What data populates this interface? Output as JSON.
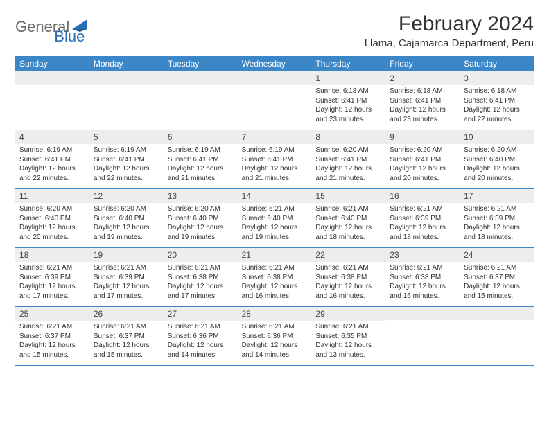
{
  "brand": {
    "general": "General",
    "blue": "Blue"
  },
  "title": "February 2024",
  "location": "Llama, Cajamarca Department, Peru",
  "colors": {
    "header_bg": "#3b86c7",
    "header_text": "#ffffff",
    "daynum_bg": "#eceded",
    "border": "#3b86c7",
    "text": "#333333",
    "logo_gray": "#6b6b6b",
    "logo_blue": "#2a6fb5"
  },
  "weekdays": [
    "Sunday",
    "Monday",
    "Tuesday",
    "Wednesday",
    "Thursday",
    "Friday",
    "Saturday"
  ],
  "weeks": [
    [
      null,
      null,
      null,
      null,
      {
        "n": "1",
        "sr": "6:18 AM",
        "ss": "6:41 PM",
        "dl": "12 hours and 23 minutes."
      },
      {
        "n": "2",
        "sr": "6:18 AM",
        "ss": "6:41 PM",
        "dl": "12 hours and 23 minutes."
      },
      {
        "n": "3",
        "sr": "6:18 AM",
        "ss": "6:41 PM",
        "dl": "12 hours and 22 minutes."
      }
    ],
    [
      {
        "n": "4",
        "sr": "6:19 AM",
        "ss": "6:41 PM",
        "dl": "12 hours and 22 minutes."
      },
      {
        "n": "5",
        "sr": "6:19 AM",
        "ss": "6:41 PM",
        "dl": "12 hours and 22 minutes."
      },
      {
        "n": "6",
        "sr": "6:19 AM",
        "ss": "6:41 PM",
        "dl": "12 hours and 21 minutes."
      },
      {
        "n": "7",
        "sr": "6:19 AM",
        "ss": "6:41 PM",
        "dl": "12 hours and 21 minutes."
      },
      {
        "n": "8",
        "sr": "6:20 AM",
        "ss": "6:41 PM",
        "dl": "12 hours and 21 minutes."
      },
      {
        "n": "9",
        "sr": "6:20 AM",
        "ss": "6:41 PM",
        "dl": "12 hours and 20 minutes."
      },
      {
        "n": "10",
        "sr": "6:20 AM",
        "ss": "6:40 PM",
        "dl": "12 hours and 20 minutes."
      }
    ],
    [
      {
        "n": "11",
        "sr": "6:20 AM",
        "ss": "6:40 PM",
        "dl": "12 hours and 20 minutes."
      },
      {
        "n": "12",
        "sr": "6:20 AM",
        "ss": "6:40 PM",
        "dl": "12 hours and 19 minutes."
      },
      {
        "n": "13",
        "sr": "6:20 AM",
        "ss": "6:40 PM",
        "dl": "12 hours and 19 minutes."
      },
      {
        "n": "14",
        "sr": "6:21 AM",
        "ss": "6:40 PM",
        "dl": "12 hours and 19 minutes."
      },
      {
        "n": "15",
        "sr": "6:21 AM",
        "ss": "6:40 PM",
        "dl": "12 hours and 18 minutes."
      },
      {
        "n": "16",
        "sr": "6:21 AM",
        "ss": "6:39 PM",
        "dl": "12 hours and 18 minutes."
      },
      {
        "n": "17",
        "sr": "6:21 AM",
        "ss": "6:39 PM",
        "dl": "12 hours and 18 minutes."
      }
    ],
    [
      {
        "n": "18",
        "sr": "6:21 AM",
        "ss": "6:39 PM",
        "dl": "12 hours and 17 minutes."
      },
      {
        "n": "19",
        "sr": "6:21 AM",
        "ss": "6:39 PM",
        "dl": "12 hours and 17 minutes."
      },
      {
        "n": "20",
        "sr": "6:21 AM",
        "ss": "6:38 PM",
        "dl": "12 hours and 17 minutes."
      },
      {
        "n": "21",
        "sr": "6:21 AM",
        "ss": "6:38 PM",
        "dl": "12 hours and 16 minutes."
      },
      {
        "n": "22",
        "sr": "6:21 AM",
        "ss": "6:38 PM",
        "dl": "12 hours and 16 minutes."
      },
      {
        "n": "23",
        "sr": "6:21 AM",
        "ss": "6:38 PM",
        "dl": "12 hours and 16 minutes."
      },
      {
        "n": "24",
        "sr": "6:21 AM",
        "ss": "6:37 PM",
        "dl": "12 hours and 15 minutes."
      }
    ],
    [
      {
        "n": "25",
        "sr": "6:21 AM",
        "ss": "6:37 PM",
        "dl": "12 hours and 15 minutes."
      },
      {
        "n": "26",
        "sr": "6:21 AM",
        "ss": "6:37 PM",
        "dl": "12 hours and 15 minutes."
      },
      {
        "n": "27",
        "sr": "6:21 AM",
        "ss": "6:36 PM",
        "dl": "12 hours and 14 minutes."
      },
      {
        "n": "28",
        "sr": "6:21 AM",
        "ss": "6:36 PM",
        "dl": "12 hours and 14 minutes."
      },
      {
        "n": "29",
        "sr": "6:21 AM",
        "ss": "6:35 PM",
        "dl": "12 hours and 13 minutes."
      },
      null,
      null
    ]
  ],
  "labels": {
    "sunrise": "Sunrise:",
    "sunset": "Sunset:",
    "daylight": "Daylight:"
  }
}
